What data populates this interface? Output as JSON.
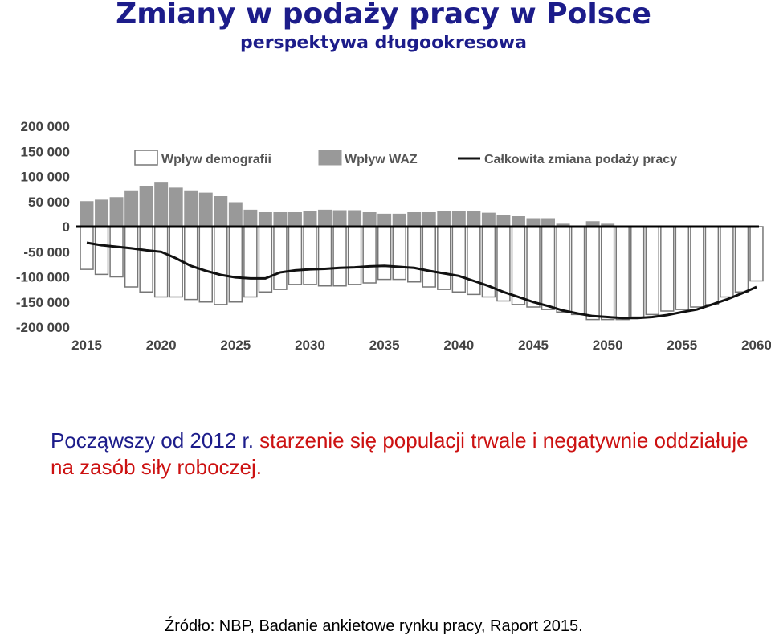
{
  "title": "Zmiany w podaży pracy w Polsce",
  "subtitle": "perspektywa długookresowa",
  "caption": {
    "part1": "Począwszy od 2012 r. ",
    "part2": "starzenie się populacji trwale i negatywnie oddziałuje na zasób siły roboczej."
  },
  "source": "Źródło: NBP, Badanie ankietowe rynku pracy, Raport 2015.",
  "colors": {
    "demo_fill": "#ffffff",
    "demo_stroke": "#777777",
    "waz_fill": "#999999",
    "line": "#111111",
    "title": "#1c1c8a",
    "highlight": "#cc1111"
  },
  "chart_data": {
    "type": "bar",
    "legend": [
      "Wpływ demografii",
      "Wpływ WAZ",
      "Całkowita zmiana podaży pracy"
    ],
    "legend_position": "top",
    "ylim": [
      -200000,
      200000
    ],
    "y_ticks": [
      "200 000",
      "150 000",
      "100 000",
      "50 000",
      "0",
      "-50 000",
      "-100 000",
      "-150 000",
      "-200 000"
    ],
    "x_ticks": [
      "2015",
      "2020",
      "2025",
      "2030",
      "2035",
      "2040",
      "2045",
      "2050",
      "2055",
      "2060"
    ],
    "x": [
      2015,
      2016,
      2017,
      2018,
      2019,
      2020,
      2021,
      2022,
      2023,
      2024,
      2025,
      2026,
      2027,
      2028,
      2029,
      2030,
      2031,
      2032,
      2033,
      2034,
      2035,
      2036,
      2037,
      2038,
      2039,
      2040,
      2041,
      2042,
      2043,
      2044,
      2045,
      2046,
      2047,
      2048,
      2049,
      2050,
      2051,
      2052,
      2053,
      2054,
      2055,
      2056,
      2057,
      2058,
      2059,
      2060
    ],
    "series": [
      {
        "name": "Wpływ demografii",
        "type": "bar",
        "values": [
          -85000,
          -95000,
          -100000,
          -120000,
          -130000,
          -140000,
          -140000,
          -145000,
          -150000,
          -155000,
          -150000,
          -140000,
          -130000,
          -125000,
          -115000,
          -115000,
          -118000,
          -118000,
          -115000,
          -112000,
          -105000,
          -105000,
          -110000,
          -120000,
          -125000,
          -130000,
          -135000,
          -140000,
          -148000,
          -155000,
          -160000,
          -165000,
          -170000,
          -175000,
          -185000,
          -185000,
          -185000,
          -180000,
          -175000,
          -168000,
          -165000,
          -160000,
          -155000,
          -140000,
          -130000,
          -108000
        ]
      },
      {
        "name": "Wpływ WAZ",
        "type": "bar",
        "values": [
          50000,
          53000,
          58000,
          70000,
          80000,
          87000,
          77000,
          70000,
          67000,
          60000,
          48000,
          33000,
          28000,
          28000,
          28000,
          30000,
          33000,
          32000,
          32000,
          28000,
          25000,
          25000,
          28000,
          28000,
          30000,
          30000,
          30000,
          27000,
          22000,
          20000,
          16000,
          16000,
          5000,
          0,
          10000,
          5000,
          0,
          0,
          0,
          0,
          0,
          0,
          0,
          0,
          0,
          0
        ]
      },
      {
        "name": "Całkowita zmiana podaży pracy",
        "type": "line",
        "values": [
          -32000,
          -37000,
          -40000,
          -43000,
          -47000,
          -50000,
          -63000,
          -78000,
          -88000,
          -96000,
          -101000,
          -103000,
          -103000,
          -91000,
          -87000,
          -85000,
          -84000,
          -82000,
          -81000,
          -79000,
          -78000,
          -80000,
          -82000,
          -88000,
          -93000,
          -98000,
          -108000,
          -118000,
          -130000,
          -140000,
          -150000,
          -158000,
          -167000,
          -173000,
          -178000,
          -180000,
          -182000,
          -182000,
          -180000,
          -176000,
          -170000,
          -165000,
          -155000,
          -145000,
          -133000,
          -120000
        ]
      }
    ]
  }
}
